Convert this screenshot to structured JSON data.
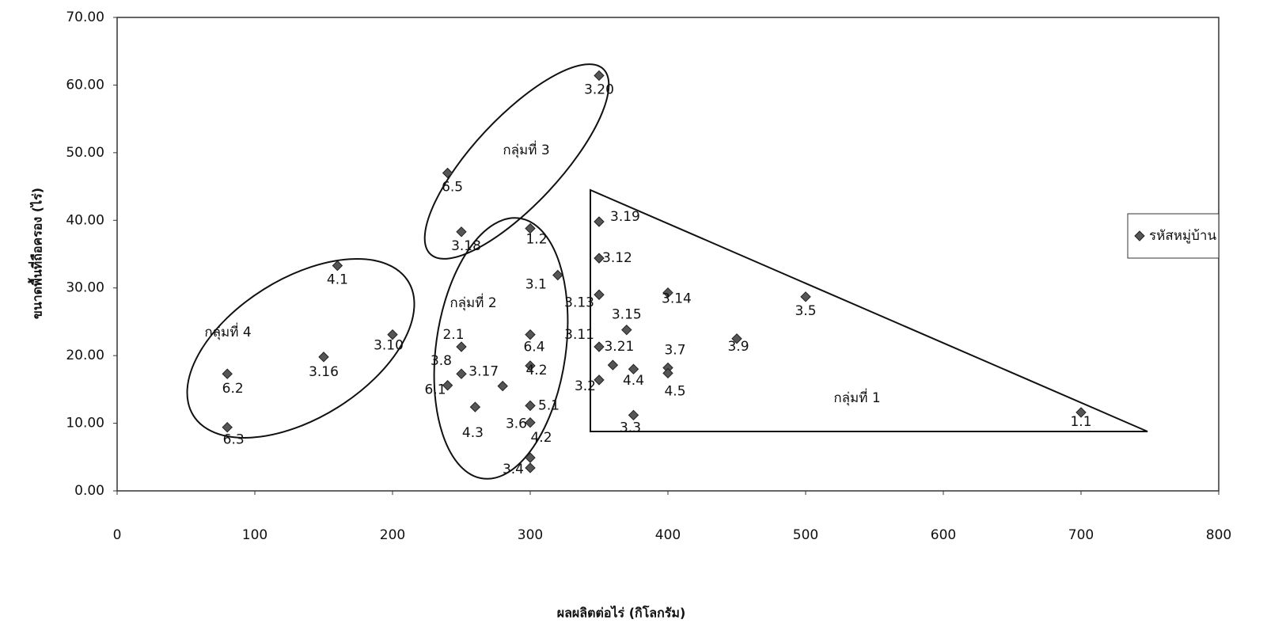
{
  "chart_data": {
    "type": "scatter",
    "x_label": "ผลผลิตต่อไร่ (กิโลกรัม)",
    "y_label": "ขนาดพื้นที่ถือครอง (ไร่)",
    "xlim": [
      0,
      800
    ],
    "xticks": [
      0,
      100,
      200,
      300,
      400,
      500,
      600,
      700,
      800
    ],
    "ylim": [
      0,
      70
    ],
    "yticks": [
      {
        "value": 0,
        "label": "0.00"
      },
      {
        "value": 10,
        "label": "10.00"
      },
      {
        "value": 20,
        "label": "20.00"
      },
      {
        "value": 30,
        "label": "30.00"
      },
      {
        "value": 40,
        "label": "40.00"
      },
      {
        "value": 50,
        "label": "50.00"
      },
      {
        "value": 60,
        "label": "60.00"
      },
      {
        "value": 70,
        "label": "70.00"
      }
    ],
    "legend": "right",
    "series": [
      {
        "name": "รหัสหมู่บ้าน",
        "color": "#555555",
        "x": [
          350,
          240,
          250,
          300,
          350,
          350,
          160,
          320,
          350,
          400,
          500,
          200,
          300,
          370,
          450,
          250,
          350,
          360,
          150,
          300,
          375,
          400,
          400,
          80,
          250,
          350,
          240,
          280,
          260,
          300,
          375,
          700,
          300,
          80,
          300,
          300
        ],
        "values": [
          61.4,
          47,
          38.3,
          38.8,
          39.8,
          34.4,
          33.3,
          31.9,
          29.0,
          29.3,
          28.7,
          23.1,
          23.1,
          23.8,
          22.5,
          21.3,
          21.3,
          18.6,
          19.8,
          18.5,
          18.0,
          18.2,
          17.4,
          17.3,
          17.3,
          16.4,
          15.6,
          15.5,
          12.4,
          12.6,
          11.2,
          11.6,
          10.1,
          9.4,
          4.9,
          3.4
        ],
        "point_labels": [
          "3.20",
          "6.5",
          "3.18",
          "1.2",
          "3.19",
          "3.12",
          "4.1",
          "3.1",
          "3.13",
          "3.14",
          "3.5",
          "3.10",
          "6.4",
          "3.15",
          "3.9",
          "2.1",
          "3.11",
          "3.21",
          "3.16",
          "4.2",
          "4.4",
          "3.7",
          "4.5",
          "6.2",
          "3.8",
          "3.2",
          "6.1",
          "3.17",
          "4.3",
          "5.1",
          "3.3",
          "1.1",
          "3.6",
          "6.3",
          "4.2",
          "3.4"
        ]
      }
    ],
    "annotations": [
      "กลุ่มที่ 1",
      "กลุ่มที่ 2",
      "กลุ่มที่ 3",
      "กลุ่มที่ 4"
    ]
  }
}
